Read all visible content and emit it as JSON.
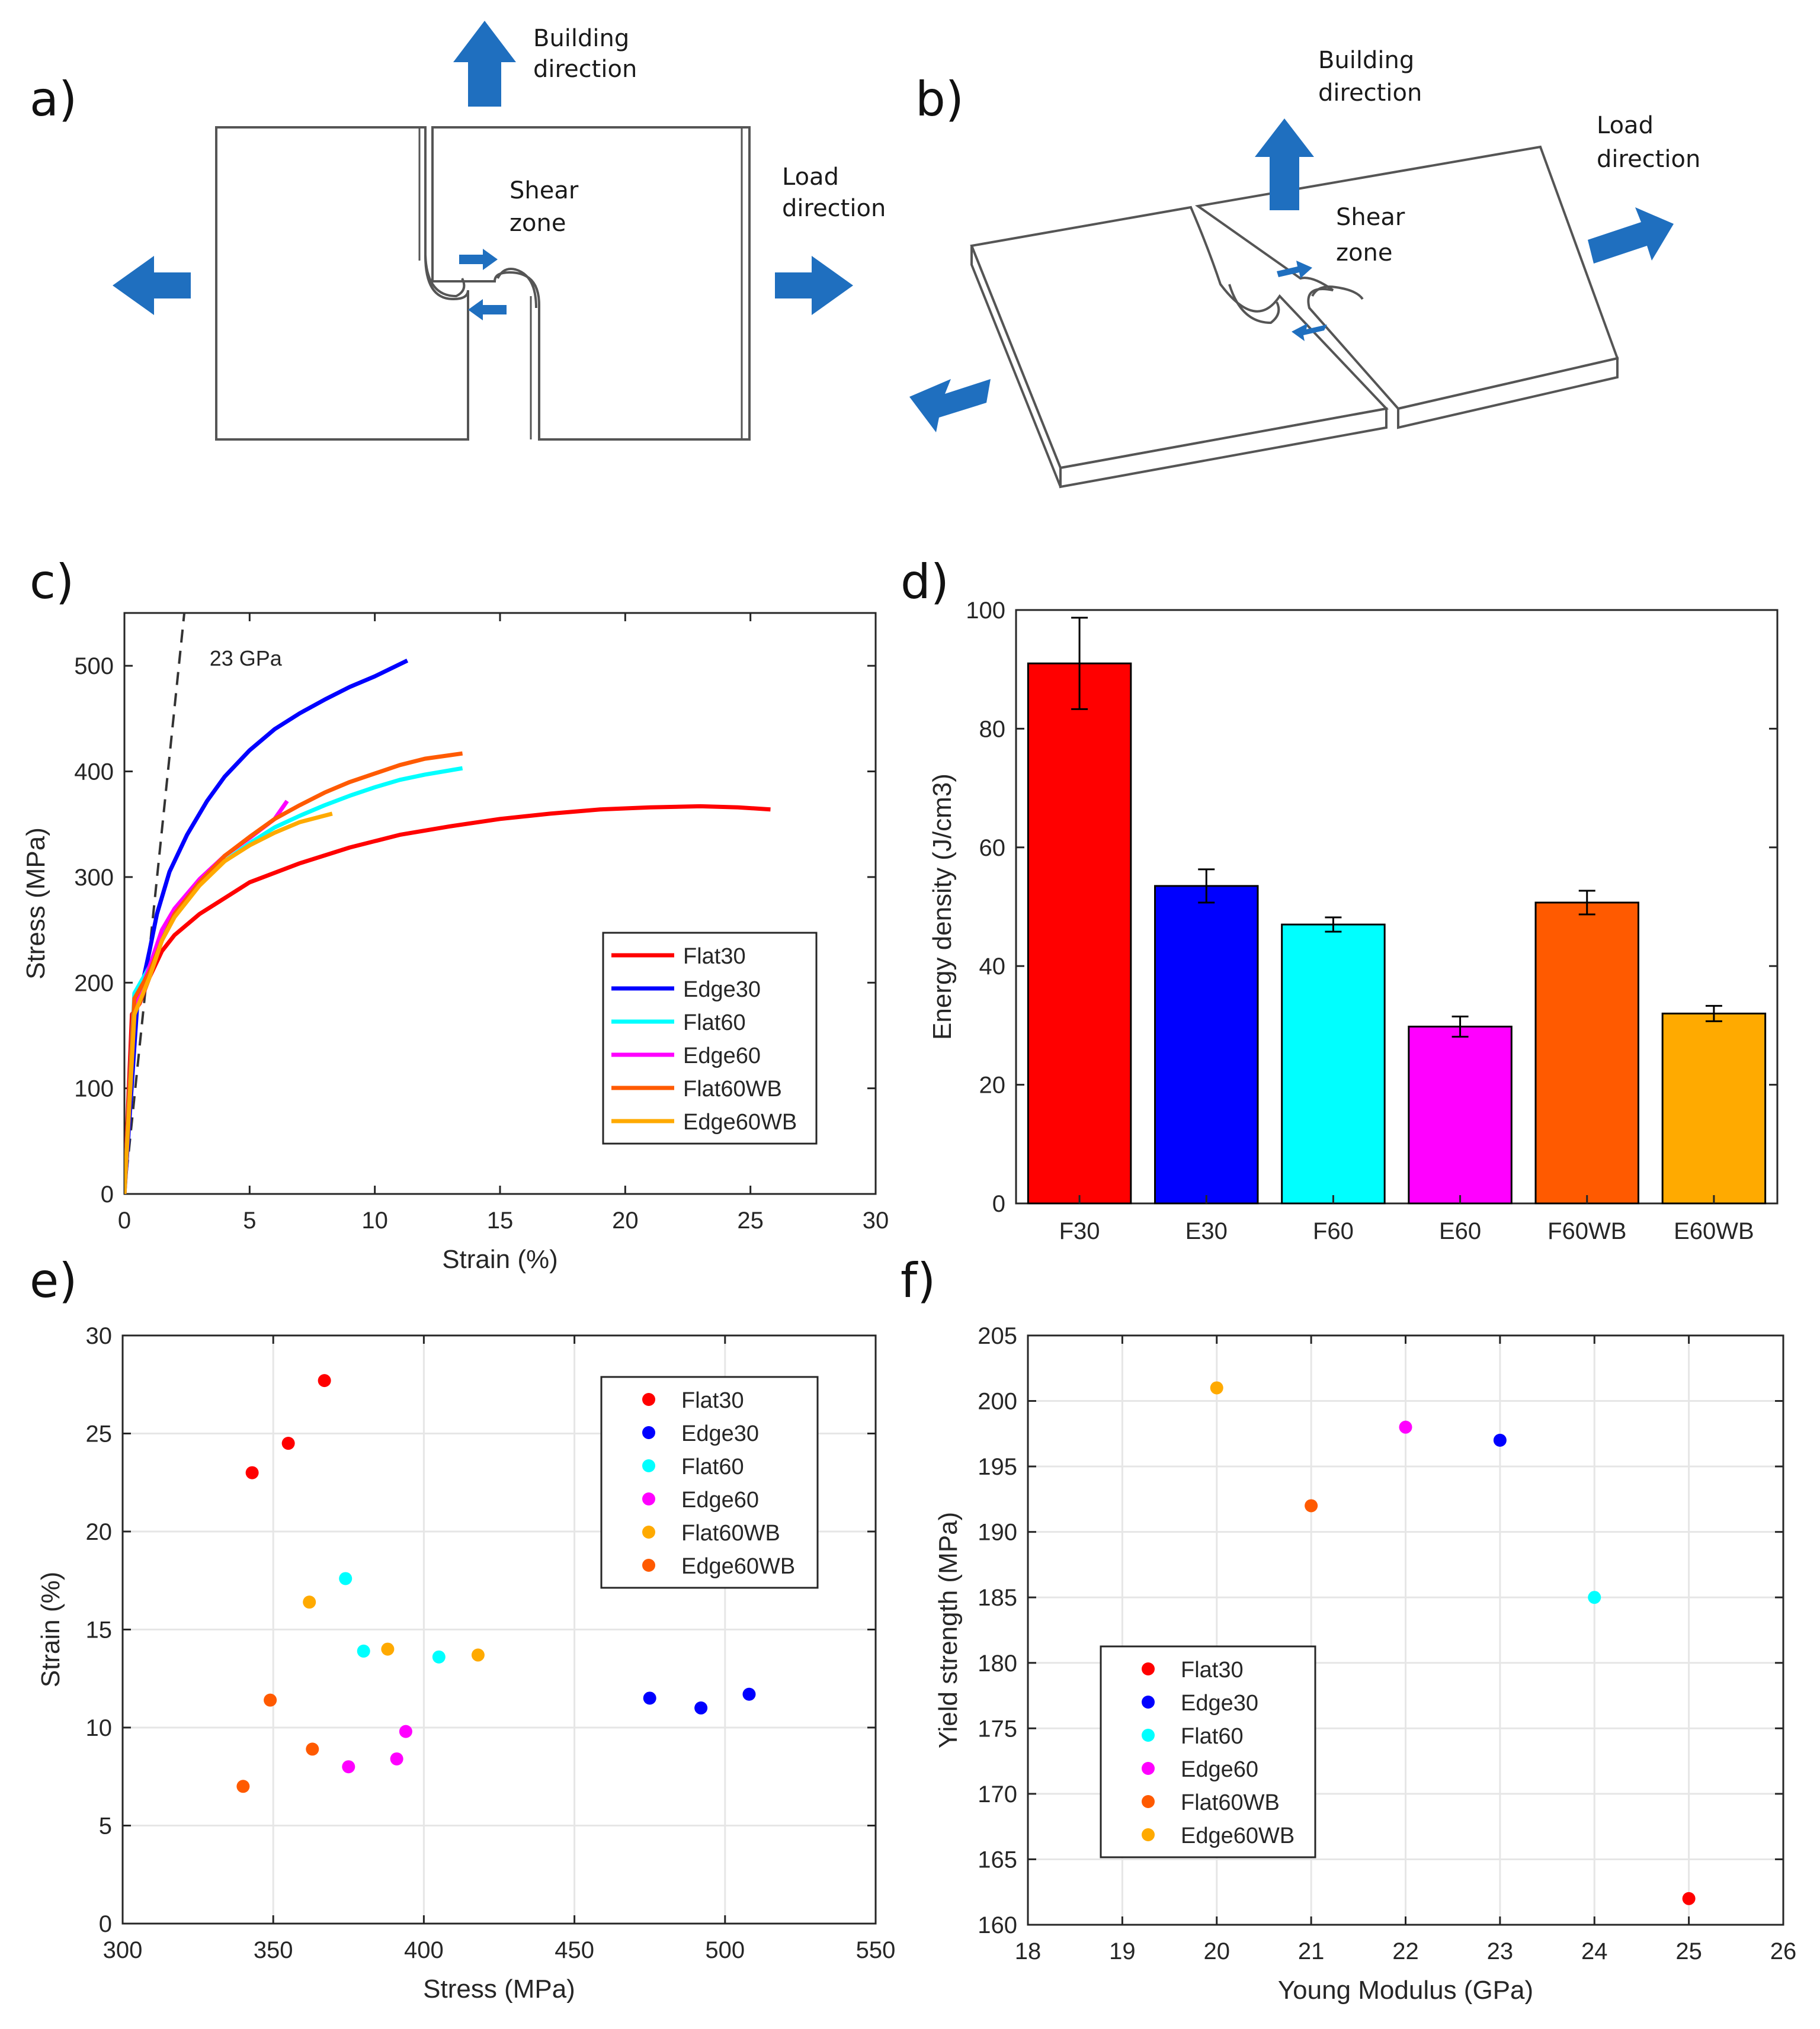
{
  "colors": {
    "flat30": "#ff0000",
    "edge30": "#0000ff",
    "flat60": "#00ffff",
    "edge60": "#ff00ff",
    "flat60wb": "#ff5a00",
    "edge60wb": "#ffaa00",
    "arrow": "#1f6fbf",
    "grid": "#e6e6e6",
    "axis": "#262626"
  },
  "diagrams": {
    "a": {
      "panel_label": "a)",
      "building_direction": [
        "Building",
        "direction"
      ],
      "shear_zone": [
        "Shear",
        "zone"
      ],
      "load_direction": [
        "Load",
        "direction"
      ]
    },
    "b": {
      "panel_label": "b)",
      "building_direction": [
        "Building",
        "direction"
      ],
      "shear_zone": [
        "Shear",
        "zone"
      ],
      "load_direction": [
        "Load",
        "direction"
      ]
    }
  },
  "chart_data": [
    {
      "id": "c",
      "panel_label": "c)",
      "type": "line",
      "xlabel": "Strain (%)",
      "ylabel": "Stress (MPa)",
      "xlim": [
        0,
        30
      ],
      "ylim": [
        0,
        550
      ],
      "xticks": [
        0,
        5,
        10,
        15,
        20,
        25,
        30
      ],
      "yticks": [
        0,
        100,
        200,
        300,
        400,
        500
      ],
      "grid": false,
      "legend_position": "bottom-right",
      "annotation": "23 GPa",
      "reference_line": {
        "name": "23 GPa",
        "x": [
          0,
          2.5
        ],
        "y": [
          0,
          575
        ],
        "style": "dashed"
      },
      "series": [
        {
          "name": "Flat30",
          "color_key": "flat30",
          "x": [
            0,
            0.3,
            0.6,
            1,
            1.5,
            2,
            3,
            4,
            5,
            7,
            9,
            11,
            13,
            15,
            17,
            19,
            21,
            23,
            24.5,
            25.8
          ],
          "y": [
            0,
            170,
            180,
            205,
            230,
            245,
            265,
            280,
            295,
            313,
            328,
            340,
            348,
            355,
            360,
            364,
            366,
            367,
            366,
            364
          ]
        },
        {
          "name": "Edge30",
          "color_key": "edge30",
          "x": [
            0,
            0.5,
            1,
            1.3,
            1.8,
            2.5,
            3.3,
            4,
            5,
            6,
            7,
            8,
            9,
            10,
            11.3
          ],
          "y": [
            0,
            175,
            230,
            265,
            305,
            340,
            372,
            395,
            420,
            440,
            455,
            468,
            480,
            490,
            505
          ]
        },
        {
          "name": "Flat60",
          "color_key": "flat60",
          "x": [
            0,
            0.4,
            1,
            1.5,
            2,
            3,
            4,
            5,
            6,
            7,
            8,
            9,
            10,
            11,
            12,
            13.5
          ],
          "y": [
            0,
            190,
            215,
            245,
            265,
            295,
            315,
            332,
            347,
            358,
            368,
            377,
            385,
            392,
            397,
            403
          ]
        },
        {
          "name": "Edge60",
          "color_key": "edge60",
          "x": [
            0,
            0.4,
            1,
            1.5,
            2,
            3,
            4,
            5,
            6,
            6.5
          ],
          "y": [
            0,
            175,
            215,
            250,
            270,
            298,
            320,
            337,
            355,
            372
          ]
        },
        {
          "name": "Flat60WB",
          "color_key": "flat60wb",
          "x": [
            0,
            0.4,
            1,
            1.5,
            2,
            3,
            4,
            5,
            6,
            7,
            8,
            9,
            10,
            11,
            12,
            13.5
          ],
          "y": [
            0,
            185,
            210,
            240,
            265,
            295,
            320,
            338,
            355,
            368,
            380,
            390,
            398,
            406,
            412,
            417
          ]
        },
        {
          "name": "Edge60WB",
          "color_key": "edge60wb",
          "x": [
            0,
            0.4,
            1,
            1.5,
            2,
            3,
            4,
            5,
            6,
            7,
            8.3
          ],
          "y": [
            0,
            170,
            205,
            240,
            262,
            292,
            315,
            330,
            342,
            352,
            360
          ]
        }
      ]
    },
    {
      "id": "d",
      "panel_label": "d)",
      "type": "bar",
      "ylabel": "Energy density (J/cm3)",
      "xlabel": "",
      "ylim": [
        0,
        100
      ],
      "yticks": [
        0,
        20,
        40,
        60,
        80,
        100
      ],
      "grid": false,
      "categories": [
        "F30",
        "E30",
        "F60",
        "E60",
        "F60WB",
        "E60WB"
      ],
      "color_keys": [
        "flat30",
        "edge30",
        "flat60",
        "edge60",
        "flat60wb",
        "edge60wb"
      ],
      "values": [
        91,
        53.5,
        47,
        29.8,
        50.7,
        32
      ],
      "errors": [
        7.7,
        2.8,
        1.2,
        1.7,
        2.0,
        1.3
      ]
    },
    {
      "id": "e",
      "panel_label": "e)",
      "type": "scatter",
      "xlabel": "Stress (MPa)",
      "ylabel": "Strain (%)",
      "xlim": [
        300,
        550
      ],
      "ylim": [
        0,
        30
      ],
      "xticks": [
        300,
        350,
        400,
        450,
        500,
        550
      ],
      "yticks": [
        0,
        5,
        10,
        15,
        20,
        25,
        30
      ],
      "grid": true,
      "legend_position": "top-right",
      "series": [
        {
          "name": "Flat30",
          "color_key": "flat30",
          "x": [
            367,
            355,
            343
          ],
          "y": [
            27.7,
            24.5,
            23
          ]
        },
        {
          "name": "Edge30",
          "color_key": "edge30",
          "x": [
            475,
            492,
            508
          ],
          "y": [
            11.5,
            11,
            11.7
          ]
        },
        {
          "name": "Flat60",
          "color_key": "flat60",
          "x": [
            374,
            380,
            405
          ],
          "y": [
            17.6,
            13.9,
            13.6
          ]
        },
        {
          "name": "Edge60",
          "color_key": "edge60",
          "x": [
            394,
            391,
            375
          ],
          "y": [
            9.8,
            8.4,
            8
          ]
        },
        {
          "name": "Flat60WB",
          "color_key": "edge60wb",
          "x": [
            362,
            388,
            418
          ],
          "y": [
            16.4,
            14,
            13.7
          ]
        },
        {
          "name": "Edge60WB",
          "color_key": "flat60wb",
          "x": [
            349,
            363,
            340
          ],
          "y": [
            11.4,
            8.9,
            7
          ]
        }
      ]
    },
    {
      "id": "f",
      "panel_label": "f)",
      "type": "scatter",
      "xlabel": "Young Modulus (GPa)",
      "ylabel": "Yield strength (MPa)",
      "xlim": [
        18,
        26
      ],
      "ylim": [
        160,
        205
      ],
      "xticks": [
        18,
        19,
        20,
        21,
        22,
        23,
        24,
        25,
        26
      ],
      "yticks": [
        160,
        165,
        170,
        175,
        180,
        185,
        190,
        195,
        200,
        205
      ],
      "grid": true,
      "legend_position": "bottom-left",
      "series": [
        {
          "name": "Flat30",
          "color_key": "flat30",
          "x": [
            25
          ],
          "y": [
            162
          ]
        },
        {
          "name": "Edge30",
          "color_key": "edge30",
          "x": [
            23
          ],
          "y": [
            197
          ]
        },
        {
          "name": "Flat60",
          "color_key": "flat60",
          "x": [
            24
          ],
          "y": [
            185
          ]
        },
        {
          "name": "Edge60",
          "color_key": "edge60",
          "x": [
            22
          ],
          "y": [
            198
          ]
        },
        {
          "name": "Flat60WB",
          "color_key": "flat60wb",
          "x": [
            21
          ],
          "y": [
            192
          ]
        },
        {
          "name": "Edge60WB",
          "color_key": "edge60wb",
          "x": [
            20
          ],
          "y": [
            201
          ]
        }
      ]
    }
  ]
}
